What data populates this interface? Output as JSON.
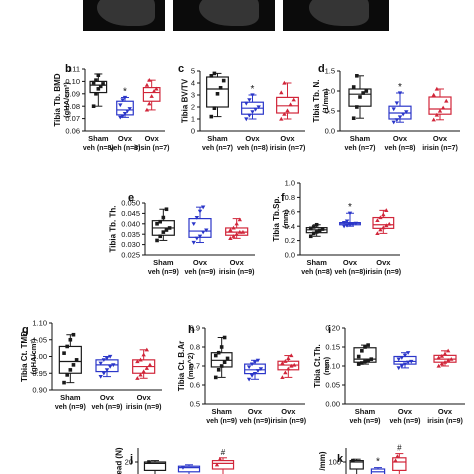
{
  "colors": {
    "sham": "#1a1a1a",
    "ovx_veh": "#2b36c9",
    "ovx_irisin": "#d1263a"
  },
  "ct_strips": [
    {
      "name": "microct-image-sham"
    },
    {
      "name": "microct-image-ovx-veh"
    },
    {
      "name": "microct-image-ovx-irisin"
    }
  ],
  "chart_data": [
    {
      "type": "box",
      "panel": "b",
      "ylabel": "Tibia Tb. BMD",
      "yunit": "(gHA/cm³)",
      "ylim": [
        0.06,
        0.11
      ],
      "yticks": [
        "0.06",
        "0.07",
        "0.08",
        "0.09",
        "0.10",
        "0.11"
      ],
      "tickvals": [
        0.06,
        0.07,
        0.08,
        0.09,
        0.1,
        0.11
      ],
      "categories": [
        {
          "l1": "Sham",
          "l2": "veh (n=8)"
        },
        {
          "l1": "Ovx",
          "l2": "veh (n=8)"
        },
        {
          "l1": "Ovx",
          "l2": "irisin (n=7)"
        }
      ],
      "boxes": [
        {
          "min": 0.08,
          "q1": 0.091,
          "med": 0.097,
          "q3": 0.1,
          "max": 0.106,
          "pts": [
            0.08,
            0.09,
            0.094,
            0.096,
            0.098,
            0.099,
            0.101,
            0.105
          ]
        },
        {
          "min": 0.071,
          "q1": 0.073,
          "med": 0.077,
          "q3": 0.084,
          "max": 0.087,
          "pts": [
            0.071,
            0.072,
            0.074,
            0.076,
            0.078,
            0.081,
            0.085,
            0.087
          ]
        },
        {
          "min": 0.077,
          "q1": 0.084,
          "med": 0.091,
          "q3": 0.095,
          "max": 0.101,
          "pts": [
            0.077,
            0.082,
            0.088,
            0.092,
            0.094,
            0.097,
            0.101
          ]
        }
      ],
      "marks": [
        "",
        "*",
        ""
      ]
    },
    {
      "type": "box",
      "panel": "c",
      "ylabel": "Tibia BV/TV",
      "yunit": "",
      "ylim": [
        0,
        5
      ],
      "yticks": [
        "0",
        "1",
        "2",
        "3",
        "4",
        "5"
      ],
      "tickvals": [
        0,
        1,
        2,
        3,
        4,
        5
      ],
      "categories": [
        {
          "l1": "Sham",
          "l2": "veh (n=7)"
        },
        {
          "l1": "Ovx",
          "l2": "veh (n=8)"
        },
        {
          "l1": "Ovx",
          "l2": "irisin (n=7)"
        }
      ],
      "boxes": [
        {
          "min": 1.2,
          "q1": 2.0,
          "med": 3.5,
          "q3": 4.5,
          "max": 4.8,
          "pts": [
            1.2,
            1.9,
            3.1,
            3.6,
            4.2,
            4.6,
            4.8
          ]
        },
        {
          "min": 1.0,
          "q1": 1.4,
          "med": 1.9,
          "q3": 2.4,
          "max": 3.0,
          "pts": [
            1.0,
            1.3,
            1.6,
            1.8,
            2.0,
            2.3,
            2.6,
            3.0
          ]
        },
        {
          "min": 1.0,
          "q1": 1.5,
          "med": 2.1,
          "q3": 2.8,
          "max": 4.0,
          "pts": [
            1.0,
            1.4,
            1.7,
            2.2,
            2.6,
            3.2,
            4.0
          ]
        }
      ],
      "marks": [
        "",
        "*",
        ""
      ]
    },
    {
      "type": "box",
      "panel": "d",
      "ylabel": "Tibia Tb. N.",
      "yunit": "(1/mm)",
      "ylim": [
        0,
        1.5
      ],
      "yticks": [
        "0.0",
        "0.5",
        "1.0",
        "1.5"
      ],
      "tickvals": [
        0,
        0.5,
        1.0,
        1.5
      ],
      "categories": [
        {
          "l1": "Sham",
          "l2": "veh (n=7)"
        },
        {
          "l1": "Ovx",
          "l2": "veh (n=8)"
        },
        {
          "l1": "Ovx",
          "l2": "irisin (n=7)"
        }
      ],
      "boxes": [
        {
          "min": 0.32,
          "q1": 0.62,
          "med": 0.92,
          "q3": 1.05,
          "max": 1.38,
          "pts": [
            0.32,
            0.6,
            0.85,
            0.95,
            1.0,
            1.1,
            1.38
          ]
        },
        {
          "min": 0.22,
          "q1": 0.3,
          "med": 0.45,
          "q3": 0.62,
          "max": 0.95,
          "pts": [
            0.22,
            0.28,
            0.35,
            0.42,
            0.48,
            0.55,
            0.7,
            0.95
          ]
        },
        {
          "min": 0.28,
          "q1": 0.42,
          "med": 0.55,
          "q3": 0.85,
          "max": 1.05,
          "pts": [
            0.28,
            0.4,
            0.5,
            0.58,
            0.75,
            0.9,
            1.05
          ]
        }
      ],
      "marks": [
        "",
        "*",
        ""
      ]
    },
    {
      "type": "box",
      "panel": "e",
      "ylabel": "Tibia Tb. Th.",
      "yunit": "",
      "ylim": [
        0.025,
        0.05
      ],
      "yticks": [
        "0.025",
        "0.030",
        "0.035",
        "0.040",
        "0.045",
        "0.050"
      ],
      "tickvals": [
        0.025,
        0.03,
        0.035,
        0.04,
        0.045,
        0.05
      ],
      "categories": [
        {
          "l1": "Sham",
          "l2": "veh (n=9)"
        },
        {
          "l1": "Ovx",
          "l2": "veh (n=9)"
        },
        {
          "l1": "Ovx",
          "l2": "irisin (n=9)"
        }
      ],
      "boxes": [
        {
          "min": 0.032,
          "q1": 0.0345,
          "med": 0.038,
          "q3": 0.0415,
          "max": 0.047,
          "pts": [
            0.032,
            0.034,
            0.036,
            0.037,
            0.038,
            0.04,
            0.041,
            0.043,
            0.047
          ]
        },
        {
          "min": 0.031,
          "q1": 0.0335,
          "med": 0.0365,
          "q3": 0.0425,
          "max": 0.048,
          "pts": [
            0.031,
            0.033,
            0.034,
            0.036,
            0.037,
            0.04,
            0.043,
            0.046,
            0.048
          ]
        },
        {
          "min": 0.033,
          "q1": 0.0345,
          "med": 0.036,
          "q3": 0.038,
          "max": 0.0425,
          "pts": [
            0.033,
            0.034,
            0.035,
            0.036,
            0.036,
            0.037,
            0.038,
            0.04,
            0.042
          ]
        }
      ],
      "marks": [
        "",
        "",
        ""
      ]
    },
    {
      "type": "box",
      "panel": "f",
      "ylabel": "Tibia Tb.Sp.",
      "yunit": "(mm)",
      "ylim": [
        0,
        1.0
      ],
      "yticks": [
        "0.0",
        "0.2",
        "0.4",
        "0.6",
        "0.8",
        "1.0"
      ],
      "tickvals": [
        0,
        0.2,
        0.4,
        0.6,
        0.8,
        1.0
      ],
      "categories": [
        {
          "l1": "Sham",
          "l2": "veh (n=8)"
        },
        {
          "l1": "Ovx",
          "l2": "veh (n=8)"
        },
        {
          "l1": "Ovx",
          "l2": "irisin (n=9)"
        }
      ],
      "boxes": [
        {
          "min": 0.26,
          "q1": 0.31,
          "med": 0.35,
          "q3": 0.38,
          "max": 0.42,
          "pts": [
            0.26,
            0.3,
            0.32,
            0.34,
            0.36,
            0.37,
            0.39,
            0.42
          ]
        },
        {
          "min": 0.4,
          "q1": 0.42,
          "med": 0.44,
          "q3": 0.45,
          "max": 0.58,
          "pts": [
            0.4,
            0.41,
            0.42,
            0.43,
            0.44,
            0.45,
            0.47,
            0.58
          ]
        },
        {
          "min": 0.3,
          "q1": 0.37,
          "med": 0.42,
          "q3": 0.52,
          "max": 0.62,
          "pts": [
            0.3,
            0.35,
            0.38,
            0.41,
            0.43,
            0.48,
            0.52,
            0.56,
            0.62
          ]
        }
      ],
      "marks": [
        "",
        "*",
        ""
      ]
    },
    {
      "type": "box",
      "panel": "g",
      "ylabel": "Tibia Ct. TMD",
      "yunit": "(gHA/cm³)",
      "ylim": [
        0.9,
        1.1
      ],
      "yticks": [
        "0.90",
        "0.95",
        "1.00",
        "1.05",
        "1.10"
      ],
      "tickvals": [
        0.9,
        0.95,
        1.0,
        1.05,
        1.1
      ],
      "categories": [
        {
          "l1": "Sham",
          "l2": "veh (n=9)"
        },
        {
          "l1": "Ovx",
          "l2": "veh (n=9)"
        },
        {
          "l1": "Ovx",
          "l2": "irisin (n=9)"
        }
      ],
      "boxes": [
        {
          "min": 0.922,
          "q1": 0.95,
          "med": 0.985,
          "q3": 1.03,
          "max": 1.065,
          "pts": [
            0.922,
            0.945,
            0.96,
            0.975,
            0.99,
            1.01,
            1.03,
            1.05,
            1.065
          ]
        },
        {
          "min": 0.94,
          "q1": 0.955,
          "med": 0.975,
          "q3": 0.99,
          "max": 1.0,
          "pts": [
            0.94,
            0.95,
            0.96,
            0.97,
            0.975,
            0.98,
            0.99,
            0.995,
            1.0
          ]
        },
        {
          "min": 0.935,
          "q1": 0.95,
          "med": 0.97,
          "q3": 0.99,
          "max": 1.02,
          "pts": [
            0.935,
            0.945,
            0.955,
            0.965,
            0.975,
            0.985,
            0.99,
            1.005,
            1.02
          ]
        }
      ],
      "marks": [
        "",
        "",
        ""
      ]
    },
    {
      "type": "box",
      "panel": "h",
      "ylabel": "Tibia Ct. B.Ar",
      "yunit": "(mm^2)",
      "ylim": [
        0.5,
        0.9
      ],
      "yticks": [
        "0.5",
        "0.6",
        "0.7",
        "0.8",
        "0.9"
      ],
      "tickvals": [
        0.5,
        0.6,
        0.7,
        0.8,
        0.9
      ],
      "categories": [
        {
          "l1": "Sham",
          "l2": "veh (n=9)"
        },
        {
          "l1": "Ovx",
          "l2": "veh (n=9)"
        },
        {
          "l1": "Ovx",
          "l2": "irisin (n=9)"
        }
      ],
      "boxes": [
        {
          "min": 0.64,
          "q1": 0.695,
          "med": 0.73,
          "q3": 0.77,
          "max": 0.85,
          "pts": [
            0.64,
            0.68,
            0.7,
            0.72,
            0.74,
            0.755,
            0.77,
            0.8,
            0.85
          ]
        },
        {
          "min": 0.63,
          "q1": 0.66,
          "med": 0.68,
          "q3": 0.71,
          "max": 0.73,
          "pts": [
            0.63,
            0.65,
            0.66,
            0.675,
            0.685,
            0.695,
            0.71,
            0.72,
            0.73
          ]
        },
        {
          "min": 0.64,
          "q1": 0.68,
          "med": 0.705,
          "q3": 0.725,
          "max": 0.755,
          "pts": [
            0.64,
            0.665,
            0.685,
            0.7,
            0.705,
            0.715,
            0.725,
            0.74,
            0.755
          ]
        }
      ],
      "marks": [
        "",
        "",
        ""
      ]
    },
    {
      "type": "box",
      "panel": "i",
      "ylabel": "Tibia Ct.Th.",
      "yunit": "(mm)",
      "ylim": [
        0.0,
        0.2
      ],
      "yticks": [
        "0.00",
        "0.05",
        "0.10",
        "0.15",
        "0.20"
      ],
      "tickvals": [
        0.0,
        0.05,
        0.1,
        0.15,
        0.2
      ],
      "categories": [
        {
          "l1": "Sham",
          "l2": "veh (n=9)"
        },
        {
          "l1": "Ovx",
          "l2": "veh (n=9)"
        },
        {
          "l1": "Ovx",
          "l2": "irisin (n=9)"
        }
      ],
      "boxes": [
        {
          "min": 0.105,
          "q1": 0.11,
          "med": 0.118,
          "q3": 0.148,
          "max": 0.155,
          "pts": [
            0.105,
            0.108,
            0.112,
            0.115,
            0.118,
            0.125,
            0.14,
            0.15,
            0.155
          ]
        },
        {
          "min": 0.095,
          "q1": 0.105,
          "med": 0.112,
          "q3": 0.125,
          "max": 0.135,
          "pts": [
            0.095,
            0.1,
            0.105,
            0.11,
            0.112,
            0.118,
            0.122,
            0.128,
            0.135
          ]
        },
        {
          "min": 0.1,
          "q1": 0.11,
          "med": 0.118,
          "q3": 0.128,
          "max": 0.14,
          "pts": [
            0.1,
            0.106,
            0.11,
            0.115,
            0.118,
            0.122,
            0.126,
            0.132,
            0.14
          ]
        }
      ],
      "marks": [
        "",
        "",
        ""
      ]
    },
    {
      "type": "box",
      "panel": "j",
      "ylabel": "ead (N)",
      "yunit": "",
      "ylim": [
        10,
        25
      ],
      "yticks": [
        "15",
        "20"
      ],
      "tickvals": [
        15,
        20
      ],
      "categories": [],
      "boxes": [
        {
          "min": 15.0,
          "q1": 17.0,
          "med": 19.5,
          "q3": 20.0,
          "max": 20.5,
          "pts": [
            20.0
          ]
        },
        {
          "min": 15.0,
          "q1": 16.5,
          "med": 18.0,
          "q3": 18.5,
          "max": 19.0,
          "pts": [
            18.0
          ]
        },
        {
          "min": 15.0,
          "q1": 17.5,
          "med": 19.5,
          "q3": 20.5,
          "max": 21.5,
          "pts": [
            19.0,
            21.0
          ]
        }
      ],
      "marks": [
        "",
        "",
        "#"
      ]
    },
    {
      "type": "box",
      "panel": "k",
      "ylabel": "/mm)",
      "yunit": "",
      "ylim": [
        80,
        110
      ],
      "yticks": [
        "100"
      ],
      "tickvals": [
        100
      ],
      "categories": [],
      "boxes": [
        {
          "min": 90,
          "q1": 95,
          "med": 100,
          "q3": 101,
          "max": 102,
          "pts": [
            101
          ]
        },
        {
          "min": 88,
          "q1": 90,
          "med": 93,
          "q3": 95,
          "max": 96,
          "pts": []
        },
        {
          "min": 90,
          "q1": 94,
          "med": 100,
          "q3": 103,
          "max": 106,
          "pts": [
            101,
            104
          ]
        }
      ],
      "marks": [
        "",
        "*",
        "#"
      ]
    }
  ]
}
